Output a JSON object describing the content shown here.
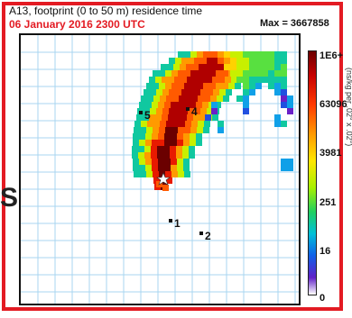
{
  "header": {
    "title": "A13, footprint (0 to 50 m) residence time",
    "date": "06 January 2016 2300 UTC",
    "max_label": "Max = 3667858"
  },
  "side_glyph": "S",
  "colorbar": {
    "labels": [
      "1E6+",
      "63096",
      "3981",
      "251",
      "16",
      "0"
    ],
    "units": "(ns/kg per .02° x .02°)",
    "colors": [
      "#6b0000",
      "#c80000",
      "#ff3a00",
      "#ff9a00",
      "#ffe600",
      "#a8f000",
      "#20d060",
      "#00c0d8",
      "#1060e8",
      "#6020c8",
      "#ffffff"
    ]
  },
  "map": {
    "grid_color": "#a9d6f0",
    "sites": [
      {
        "label": "5"
      },
      {
        "label": "4"
      },
      {
        "label": "1"
      },
      {
        "label": "2"
      }
    ],
    "receptor_marker": "white-star"
  }
}
